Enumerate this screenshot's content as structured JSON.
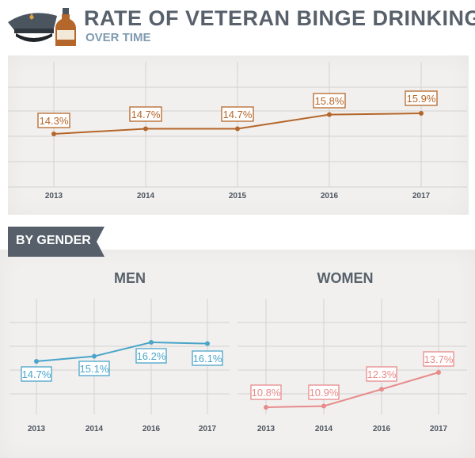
{
  "header": {
    "title": "RATE OF VETERAN BINGE DRINKING",
    "subtitle": "OVER TIME",
    "icon": "veteran-cap-and-bottle-icon"
  },
  "section": {
    "banner": "BY GENDER"
  },
  "colors": {
    "overall": "#b5662a",
    "men": "#4aa5c9",
    "women": "#e78b8b",
    "grid": "#d2d2d2",
    "title": "#58616b",
    "subtitle": "#7f9ab0",
    "banner": "#565f6a"
  },
  "chart_data": [
    {
      "type": "line",
      "title": "",
      "categories": [
        "2013",
        "2014",
        "2015",
        "2016",
        "2017"
      ],
      "series": [
        {
          "values": [
            14.3,
            14.7,
            14.7,
            15.8,
            15.9
          ]
        }
      ],
      "data_labels": [
        "14.3%",
        "14.7%",
        "14.7%",
        "15.8%",
        "15.9%"
      ],
      "grid": true
    },
    {
      "type": "line",
      "title": "MEN",
      "categories": [
        "2013",
        "2014",
        "2016",
        "2017"
      ],
      "series": [
        {
          "values": [
            14.7,
            15.1,
            16.2,
            16.1
          ]
        }
      ],
      "data_labels": [
        "14.7%",
        "15.1%",
        "16.2%",
        "16.1%"
      ],
      "grid": true
    },
    {
      "type": "line",
      "title": "WOMEN",
      "categories": [
        "2013",
        "2014",
        "2016",
        "2017"
      ],
      "series": [
        {
          "values": [
            10.8,
            10.9,
            12.3,
            13.7
          ]
        }
      ],
      "data_labels": [
        "10.8%",
        "10.9%",
        "12.3%",
        "13.7%"
      ],
      "grid": true
    }
  ]
}
